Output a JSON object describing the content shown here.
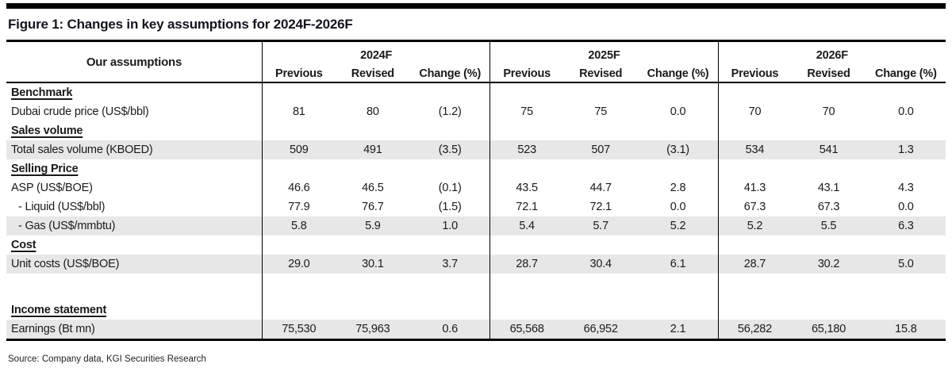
{
  "figure": {
    "title": "Figure 1: Changes in key assumptions for 2024F-2026F",
    "source": "Source: Company data, KGI Securities Research"
  },
  "table": {
    "assumptions_header": "Our assumptions",
    "year_groups": [
      {
        "label": "2024F",
        "columns": [
          "Previous",
          "Revised",
          "Change (%)"
        ]
      },
      {
        "label": "2025F",
        "columns": [
          "Previous",
          "Revised",
          "Change (%)"
        ]
      },
      {
        "label": "2026F",
        "columns": [
          "Previous",
          "Revised",
          "Change (%)"
        ]
      }
    ],
    "rows": [
      {
        "type": "section",
        "label": "Benchmark"
      },
      {
        "type": "data",
        "label": "Dubai crude price (US$/bbl)",
        "shaded": false,
        "indent": false,
        "values": [
          "81",
          "80",
          "(1.2)",
          "75",
          "75",
          "0.0",
          "70",
          "70",
          "0.0"
        ]
      },
      {
        "type": "section",
        "label": "Sales volume"
      },
      {
        "type": "data",
        "label": "Total sales volume (KBOED)",
        "shaded": true,
        "indent": false,
        "values": [
          "509",
          "491",
          "(3.5)",
          "523",
          "507",
          "(3.1)",
          "534",
          "541",
          "1.3"
        ]
      },
      {
        "type": "section",
        "label": "Selling Price"
      },
      {
        "type": "data",
        "label": "ASP (US$/BOE)",
        "shaded": false,
        "indent": false,
        "values": [
          "46.6",
          "46.5",
          "(0.1)",
          "43.5",
          "44.7",
          "2.8",
          "41.3",
          "43.1",
          "4.3"
        ]
      },
      {
        "type": "data",
        "label": "- Liquid (US$/bbl)",
        "shaded": false,
        "indent": true,
        "values": [
          "77.9",
          "76.7",
          "(1.5)",
          "72.1",
          "72.1",
          "0.0",
          "67.3",
          "67.3",
          "0.0"
        ]
      },
      {
        "type": "data",
        "label": "- Gas (US$/mmbtu)",
        "shaded": true,
        "indent": true,
        "values": [
          "5.8",
          "5.9",
          "1.0",
          "5.4",
          "5.7",
          "5.2",
          "5.2",
          "5.5",
          "6.3"
        ]
      },
      {
        "type": "section",
        "label": "Cost"
      },
      {
        "type": "data",
        "label": "Unit costs (US$/BOE)",
        "shaded": true,
        "indent": false,
        "values": [
          "29.0",
          "30.1",
          "3.7",
          "28.7",
          "30.4",
          "6.1",
          "28.7",
          "30.2",
          "5.0"
        ]
      },
      {
        "type": "blank",
        "label": ""
      },
      {
        "type": "section",
        "label": "Income statement"
      },
      {
        "type": "data",
        "label": "Earnings (Bt mn)",
        "shaded": true,
        "indent": false,
        "values": [
          "75,530",
          "75,963",
          "0.6",
          "65,568",
          "66,952",
          "2.1",
          "56,282",
          "65,180",
          "15.8"
        ]
      }
    ]
  }
}
